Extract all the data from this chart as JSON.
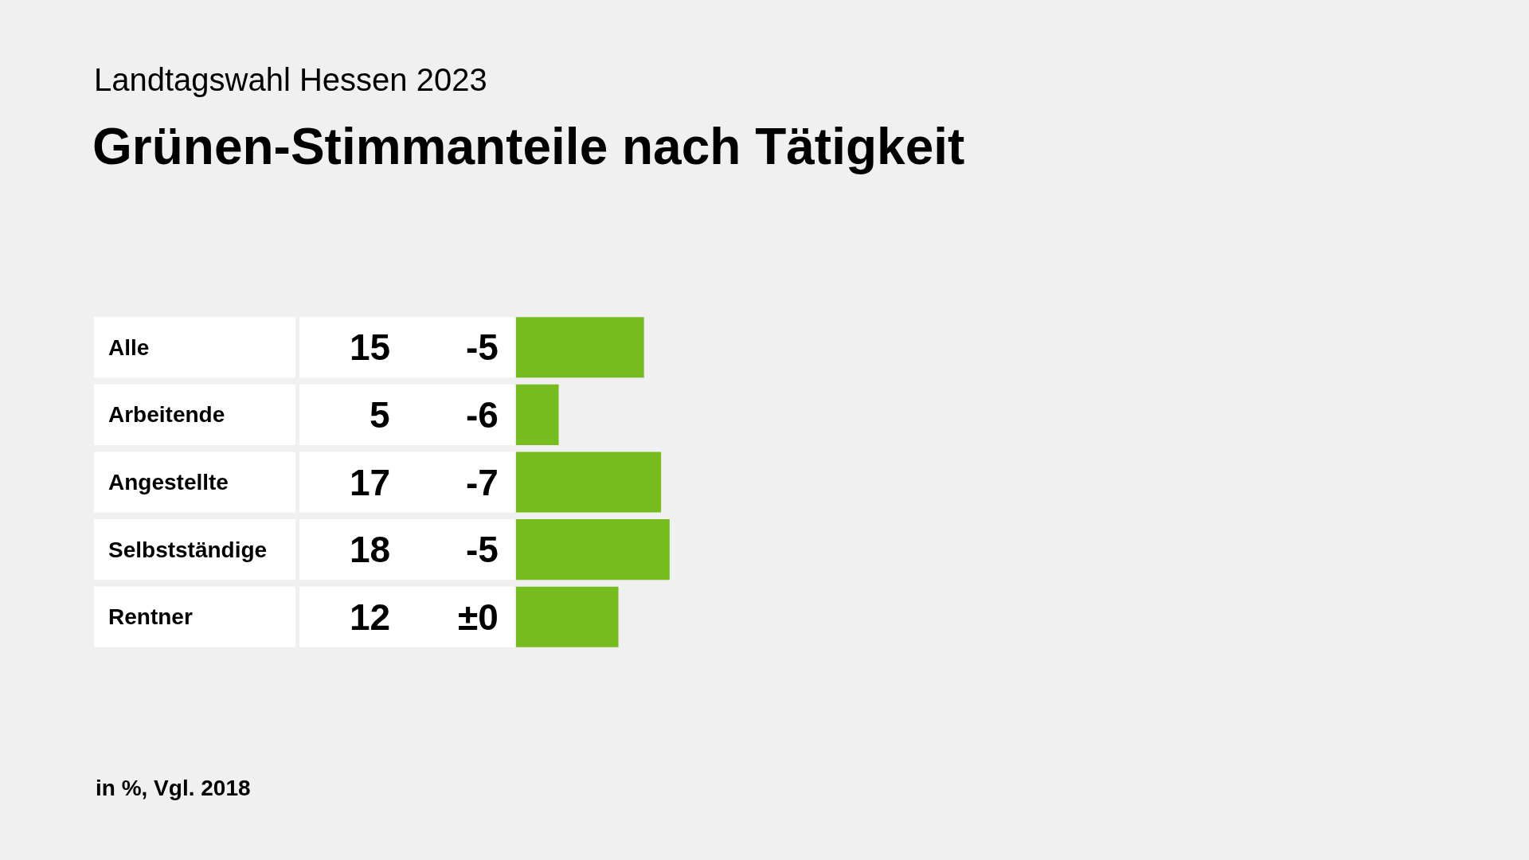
{
  "chart_data": {
    "type": "bar",
    "orientation": "horizontal",
    "subtitle": "Landtagswahl Hessen 2023",
    "title": "Grünen-Stimmanteile nach Tätigkeit",
    "categories": [
      "Alle",
      "Arbeitende",
      "Angestellte",
      "Selbstständige",
      "Rentner"
    ],
    "values": [
      15,
      5,
      17,
      18,
      12
    ],
    "color": "#77bc1f",
    "data_labels": true,
    "grid": false,
    "annotations": [
      "-5",
      "-6",
      "-7",
      "-5",
      "±0",
      "in %, Vgl. 2018"
    ]
  }
}
